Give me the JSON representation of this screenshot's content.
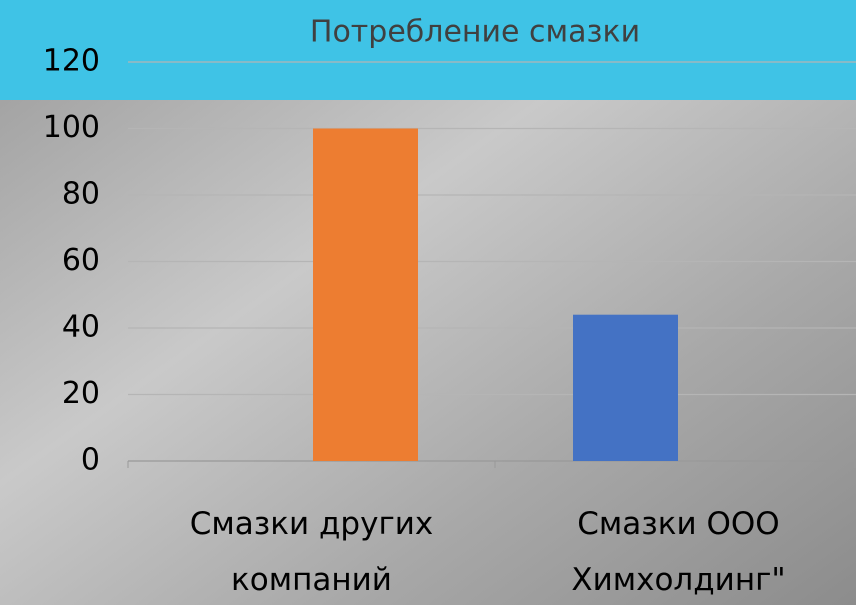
{
  "chart_data": {
    "type": "bar",
    "title": "Потребление смазки",
    "categories": [
      "Смазки других компаний",
      "Смазки ООО Химхолдинг\""
    ],
    "values": [
      100,
      44
    ],
    "colors": [
      "#ED7D31",
      "#4472C4"
    ],
    "ylim": [
      0,
      120
    ],
    "yticks": [
      0,
      20,
      40,
      60,
      80,
      100,
      120
    ],
    "grid": true
  }
}
